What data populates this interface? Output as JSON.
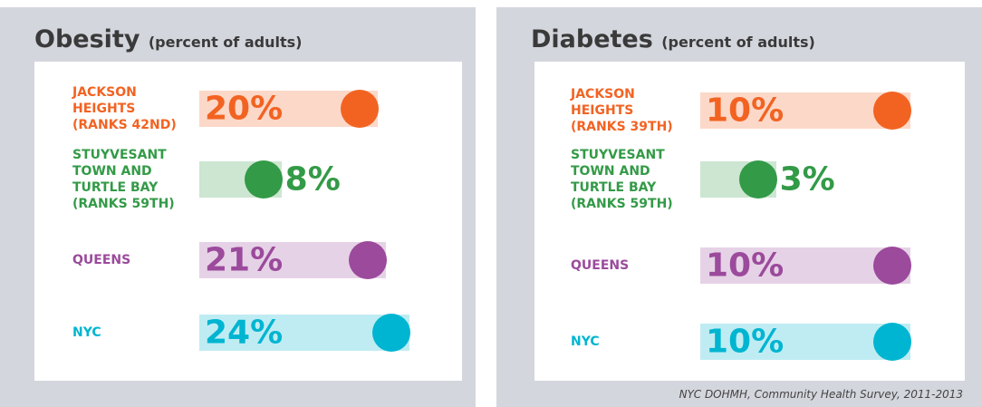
{
  "chart_data": [
    {
      "type": "bar",
      "title": "Obesity",
      "subtitle": "(percent of adults)",
      "categories": [
        "JACKSON HEIGHTS (RANKS 42ND)",
        "STUYVESANT TOWN AND TURTLE BAY (RANKS 59TH)",
        "QUEENS",
        "NYC"
      ],
      "values": [
        20,
        8,
        21,
        24
      ],
      "value_labels": [
        "20%",
        "8%",
        "21%",
        "24%"
      ],
      "colors": [
        "#f26322",
        "#339a47",
        "#9b4a9c",
        "#00b5d1"
      ],
      "source": "NYC DOHMH, Community Health Survey, 2011-2013"
    },
    {
      "type": "bar",
      "title": "Diabetes",
      "subtitle": "(percent of adults)",
      "categories": [
        "JACKSON HEIGHTS (RANKS 39TH)",
        "STUYVESANT TOWN AND TURTLE BAY (RANKS 59TH)",
        "QUEENS",
        "NYC"
      ],
      "values": [
        10,
        3,
        10,
        10
      ],
      "value_labels": [
        "10%",
        "3%",
        "10%",
        "10%"
      ],
      "colors": [
        "#f26322",
        "#339a47",
        "#9b4a9c",
        "#00b5d1"
      ],
      "source": "NYC DOHMH, Community Health Survey, 2011-2013"
    }
  ]
}
